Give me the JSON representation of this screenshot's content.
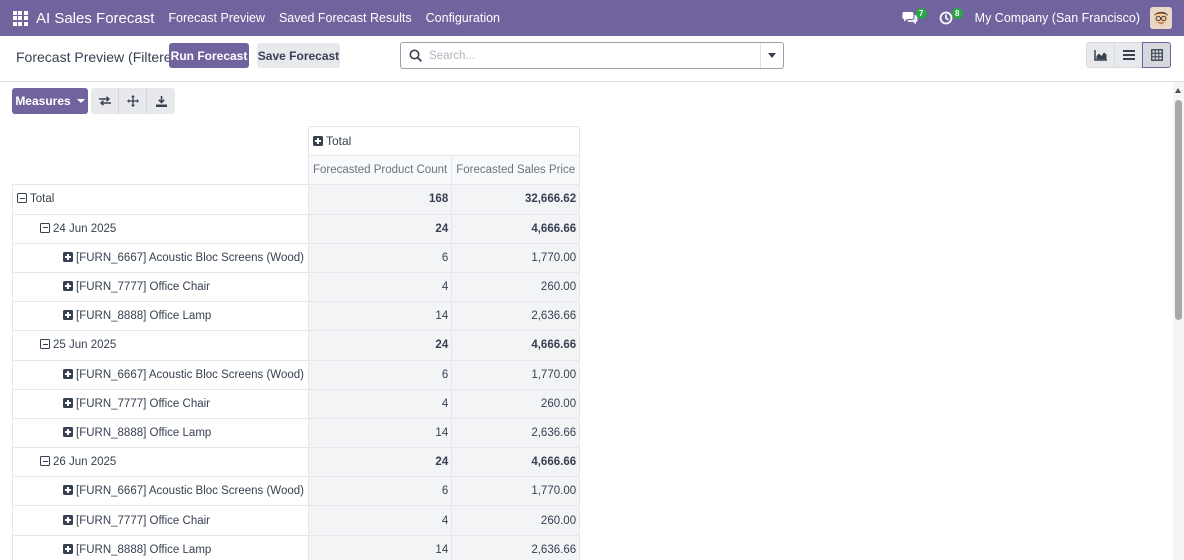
{
  "navbar": {
    "app_name": "AI Sales Forecast",
    "menu": [
      "Forecast Preview",
      "Saved Forecast Results",
      "Configuration"
    ],
    "messages_badge": "7",
    "activities_badge": "8",
    "company": "My Company (San Francisco)"
  },
  "control": {
    "breadcrumb": "Forecast Preview (Filtered)",
    "run_button": "Run Forecast",
    "save_button": "Save Forecast",
    "search_placeholder": "Search...",
    "views": [
      "graph",
      "list",
      "pivot"
    ],
    "active_view": "pivot"
  },
  "toolbar": {
    "measures_label": "Measures",
    "tools": [
      "flip-axis",
      "expand-all",
      "download"
    ]
  },
  "pivot": {
    "col_header": "Total",
    "measures": [
      "Forecasted Product Count",
      "Forecasted Sales Price"
    ],
    "rows": [
      {
        "label": "Total",
        "level": 0,
        "icon": "minus",
        "count": "168",
        "price": "32,666.62",
        "bold": true
      },
      {
        "label": "24 Jun 2025",
        "level": 1,
        "icon": "minus",
        "count": "24",
        "price": "4,666.66",
        "bold": true
      },
      {
        "label": "[FURN_6667] Acoustic Bloc Screens (Wood)",
        "level": 2,
        "icon": "plus",
        "count": "6",
        "price": "1,770.00",
        "bold": false
      },
      {
        "label": "[FURN_7777] Office Chair",
        "level": 2,
        "icon": "plus",
        "count": "4",
        "price": "260.00",
        "bold": false
      },
      {
        "label": "[FURN_8888] Office Lamp",
        "level": 2,
        "icon": "plus",
        "count": "14",
        "price": "2,636.66",
        "bold": false
      },
      {
        "label": "25 Jun 2025",
        "level": 1,
        "icon": "minus",
        "count": "24",
        "price": "4,666.66",
        "bold": true
      },
      {
        "label": "[FURN_6667] Acoustic Bloc Screens (Wood)",
        "level": 2,
        "icon": "plus",
        "count": "6",
        "price": "1,770.00",
        "bold": false
      },
      {
        "label": "[FURN_7777] Office Chair",
        "level": 2,
        "icon": "plus",
        "count": "4",
        "price": "260.00",
        "bold": false
      },
      {
        "label": "[FURN_8888] Office Lamp",
        "level": 2,
        "icon": "plus",
        "count": "14",
        "price": "2,636.66",
        "bold": false
      },
      {
        "label": "26 Jun 2025",
        "level": 1,
        "icon": "minus",
        "count": "24",
        "price": "4,666.66",
        "bold": true
      },
      {
        "label": "[FURN_6667] Acoustic Bloc Screens (Wood)",
        "level": 2,
        "icon": "plus",
        "count": "6",
        "price": "1,770.00",
        "bold": false
      },
      {
        "label": "[FURN_7777] Office Chair",
        "level": 2,
        "icon": "plus",
        "count": "4",
        "price": "260.00",
        "bold": false
      },
      {
        "label": "[FURN_8888] Office Lamp",
        "level": 2,
        "icon": "plus",
        "count": "14",
        "price": "2,636.66",
        "bold": false
      }
    ]
  },
  "colors": {
    "brand": "#71639e",
    "badge": "#28a745"
  }
}
